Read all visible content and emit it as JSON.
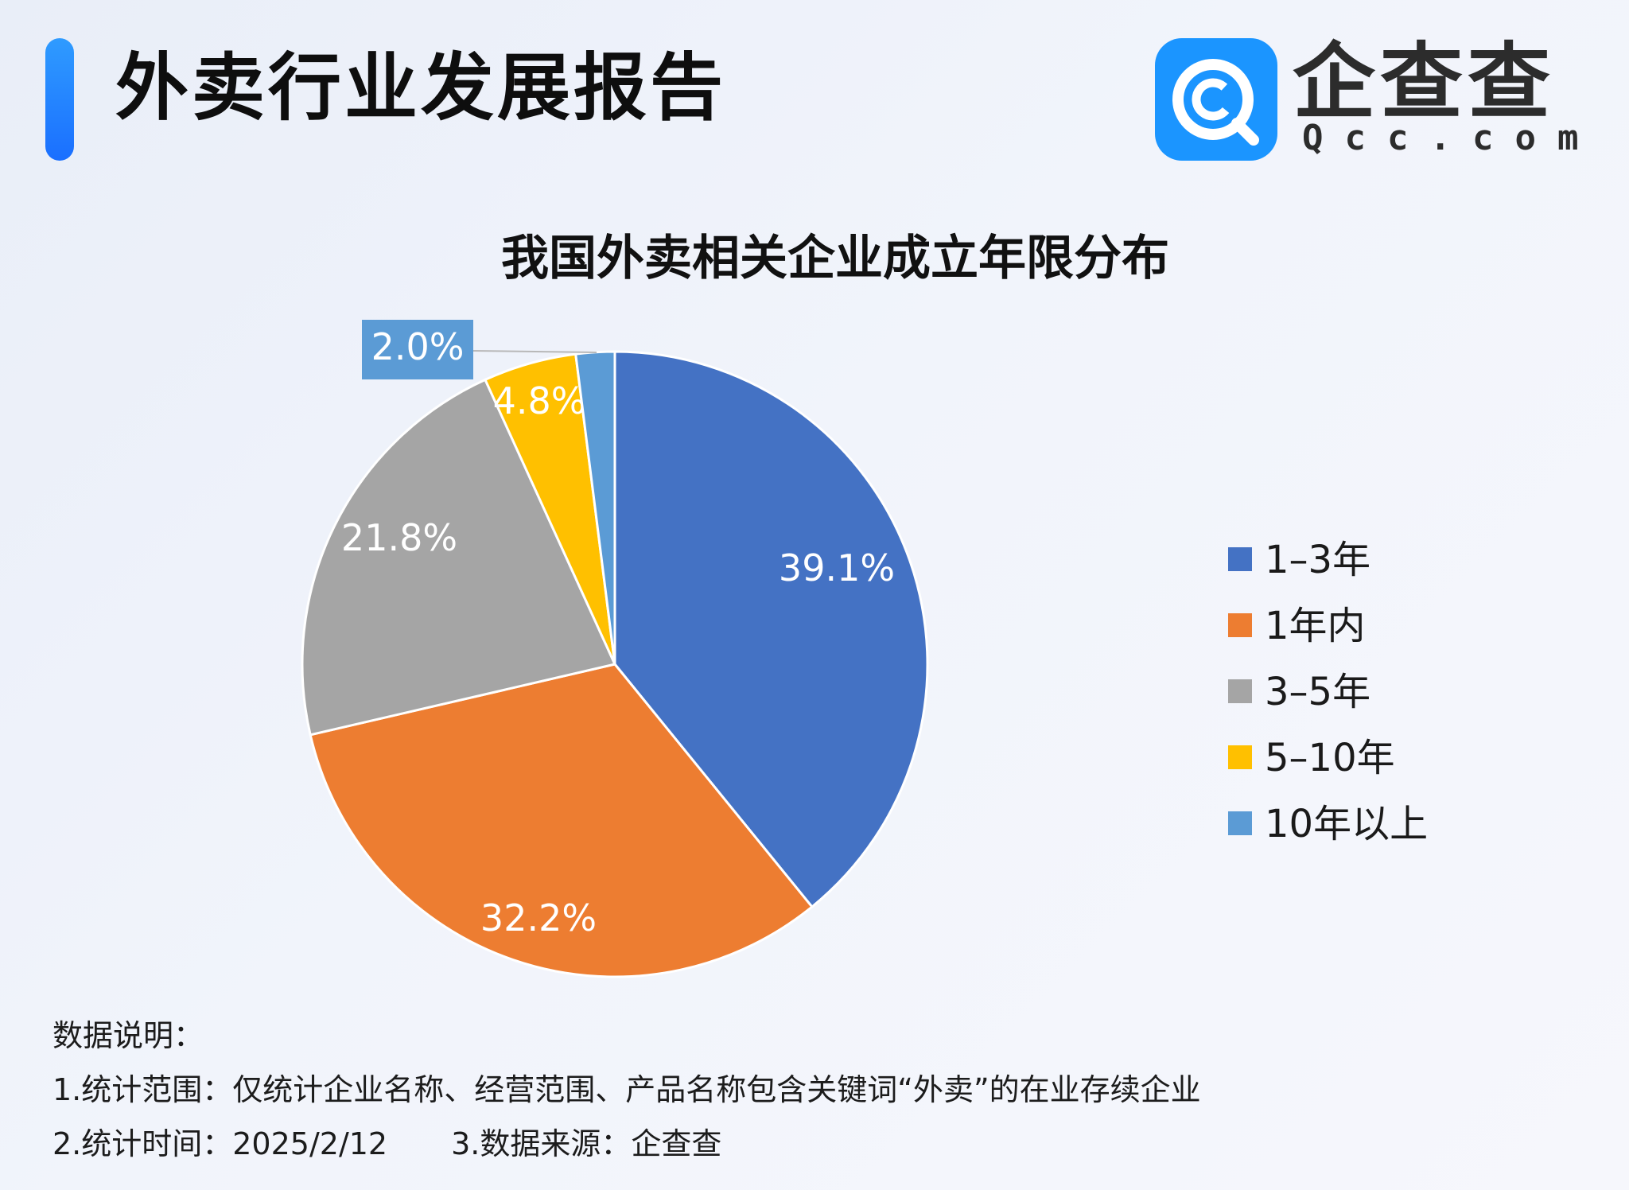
{
  "header": {
    "title": "外卖行业发展报告",
    "accent_color": "#1a7dff"
  },
  "brand": {
    "name_cn": "企查查",
    "domain": "Qcc.com",
    "icon": "qcc-magnifier-logo-icon",
    "brand_color": "#1b95ff"
  },
  "chart_data": {
    "type": "pie",
    "title": "我国外卖相关企业成立年限分布",
    "legend_position": "right",
    "slices": [
      {
        "label": "1–3年",
        "value": 39.1,
        "display": "39.1%",
        "color": "#4472c4"
      },
      {
        "label": "1年内",
        "value": 32.2,
        "display": "32.2%",
        "color": "#ed7d31"
      },
      {
        "label": "3–5年",
        "value": 21.8,
        "display": "21.8%",
        "color": "#a5a5a5"
      },
      {
        "label": "5–10年",
        "value": 4.8,
        "display": "4.8%",
        "color": "#ffc000"
      },
      {
        "label": "10年以上",
        "value": 2.0,
        "display": "2.0%",
        "color": "#5b9bd5"
      }
    ]
  },
  "notes": {
    "heading": "数据说明：",
    "line1": "1.统计范围：仅统计企业名称、经营范围、产品名称包含关键词“外卖”的在业存续企业",
    "line2a": "2.统计时间：2025/2/12",
    "line2b": "3.数据来源：企查查"
  }
}
